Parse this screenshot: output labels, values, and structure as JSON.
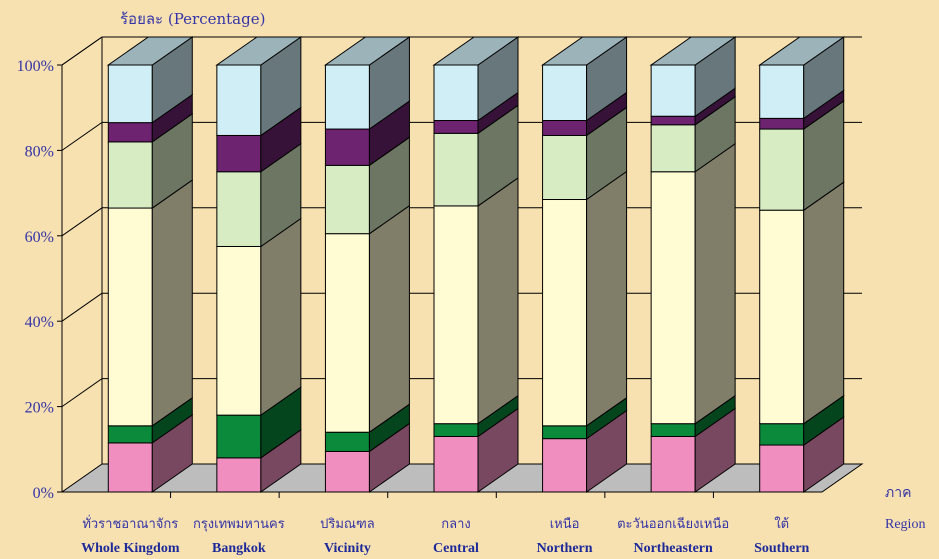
{
  "chart_data": {
    "type": "bar",
    "stacked": true,
    "three_d": true,
    "ylabel": "ร้อยละ (Percentage)",
    "xlabel_thai": "ภาค",
    "xlabel_en": "Region",
    "ylim": [
      0,
      100
    ],
    "yticks": [
      "0%",
      "20%",
      "40%",
      "60%",
      "80%",
      "100%"
    ],
    "grid": true,
    "categories_thai": [
      "ทั่วราชอาณาจักร",
      "กรุงเทพมหานคร",
      "ปริมณฑล",
      "กลาง",
      "เหนือ",
      "ตะวันออกเฉียงเหนือ",
      "ใต้"
    ],
    "categories": [
      "Whole Kingdom",
      "Bangkok",
      "Vicinity",
      "Central",
      "Northern",
      "Northeastern",
      "Southern"
    ],
    "series": [
      {
        "color": "#f08ec0",
        "values": [
          11.5,
          8.0,
          9.5,
          13.0,
          12.5,
          13.0,
          11.0
        ]
      },
      {
        "color": "#0a8a3a",
        "values": [
          4.0,
          10.0,
          4.5,
          3.0,
          3.0,
          3.0,
          5.0
        ]
      },
      {
        "color": "#fffbd2",
        "values": [
          51.0,
          39.5,
          46.5,
          51.0,
          53.0,
          59.0,
          50.0
        ]
      },
      {
        "color": "#d7ecc3",
        "values": [
          15.5,
          17.5,
          16.0,
          17.0,
          15.0,
          11.0,
          19.0
        ]
      },
      {
        "color": "#6e2370",
        "values": [
          4.5,
          8.5,
          8.5,
          3.0,
          3.5,
          2.0,
          2.5
        ]
      },
      {
        "color": "#cfeef6",
        "values": [
          13.5,
          16.5,
          15.0,
          13.0,
          13.0,
          12.0,
          12.5
        ]
      }
    ]
  }
}
